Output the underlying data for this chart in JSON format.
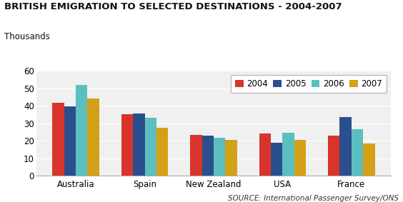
{
  "title": "BRITISH EMIGRATION TO SELECTED DESTINATIONS - 2004-2007",
  "thousands_label": "Thousands",
  "source": "SOURCE: International Passenger Survey/ONS",
  "categories": [
    "Australia",
    "Spain",
    "New Zealand",
    "USA",
    "France"
  ],
  "years": [
    "2004",
    "2005",
    "2006",
    "2007"
  ],
  "colors": [
    "#d9342b",
    "#2b4f8e",
    "#5bbfbf",
    "#d4a017"
  ],
  "values": {
    "Australia": [
      41.5,
      39.5,
      52.0,
      44.0
    ],
    "Spain": [
      35.0,
      35.5,
      33.0,
      27.5
    ],
    "New Zealand": [
      23.5,
      23.0,
      21.5,
      20.5
    ],
    "USA": [
      24.0,
      19.0,
      24.5,
      20.5
    ],
    "France": [
      23.0,
      33.5,
      26.5,
      18.5
    ]
  },
  "ylim": [
    0,
    60
  ],
  "yticks": [
    0,
    10,
    20,
    30,
    40,
    50,
    60
  ],
  "background_color": "#ffffff",
  "plot_background": "#f0f0f0",
  "grid_color": "#ffffff",
  "title_fontsize": 9.5,
  "tick_fontsize": 8.5,
  "legend_fontsize": 8.5,
  "source_fontsize": 7.5,
  "thousands_fontsize": 8.5,
  "bar_width": 0.17
}
